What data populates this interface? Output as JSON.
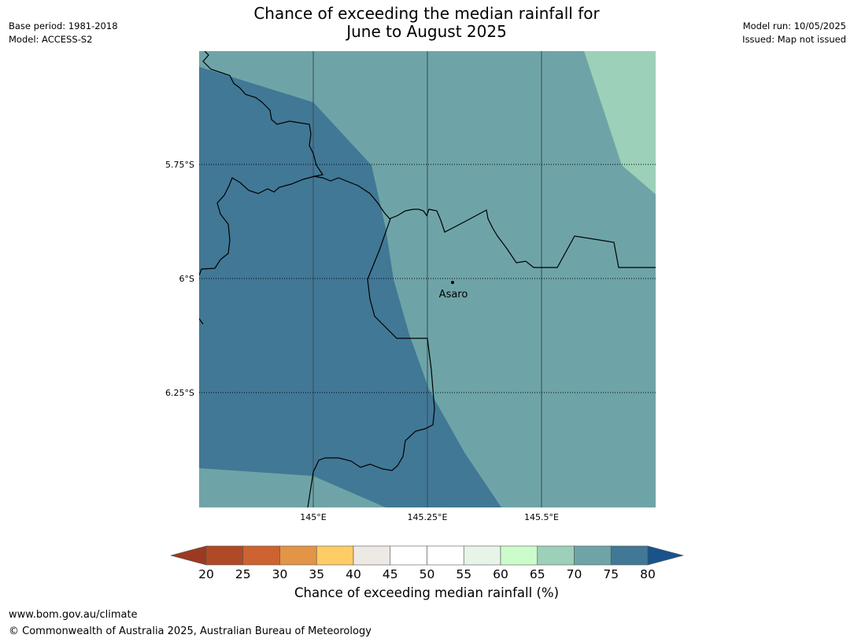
{
  "title": {
    "line1": "Chance of exceeding the median rainfall for",
    "line2": "June to August 2025"
  },
  "meta_left": {
    "base_period": "Base period: 1981-2018",
    "model": "Model: ACCESS-S2"
  },
  "meta_right": {
    "model_run": "Model run: 10/05/2025",
    "issued": "Issued: Map not issued"
  },
  "map": {
    "lat_labels": [
      "5.75°S",
      "6°S",
      "6.25°S"
    ],
    "lon_labels": [
      "145°E",
      "145.25°E",
      "145.5°E"
    ],
    "place": "Asaro"
  },
  "legend": {
    "ticks": [
      "20",
      "25",
      "30",
      "35",
      "40",
      "45",
      "50",
      "55",
      "60",
      "65",
      "70",
      "75",
      "80"
    ],
    "bins": [
      {
        "range": "20-25",
        "color": "#b04a26"
      },
      {
        "range": "25-30",
        "color": "#cc6331"
      },
      {
        "range": "30-35",
        "color": "#e29447"
      },
      {
        "range": "35-40",
        "color": "#ffcc66"
      },
      {
        "range": "40-45",
        "color": "#ede9e5"
      },
      {
        "range": "45-50",
        "color": "#ffffff"
      },
      {
        "range": "50-55",
        "color": "#ffffff"
      },
      {
        "range": "55-60",
        "color": "#e7f5e8"
      },
      {
        "range": "60-65",
        "color": "#ccfccb"
      },
      {
        "range": "65-70",
        "color": "#9dd0b8"
      },
      {
        "range": "70-75",
        "color": "#6ea4a7"
      },
      {
        "range": "75-80",
        "color": "#417896"
      }
    ],
    "under_color": "#9b3a22",
    "over_color": "#1a538a",
    "label": "Chance of exceeding median rainfall (%)"
  },
  "footer": {
    "url": "www.bom.gov.au/climate",
    "copyright": "© Commonwealth of Australia 2025, Australian Bureau of Meteorology"
  }
}
